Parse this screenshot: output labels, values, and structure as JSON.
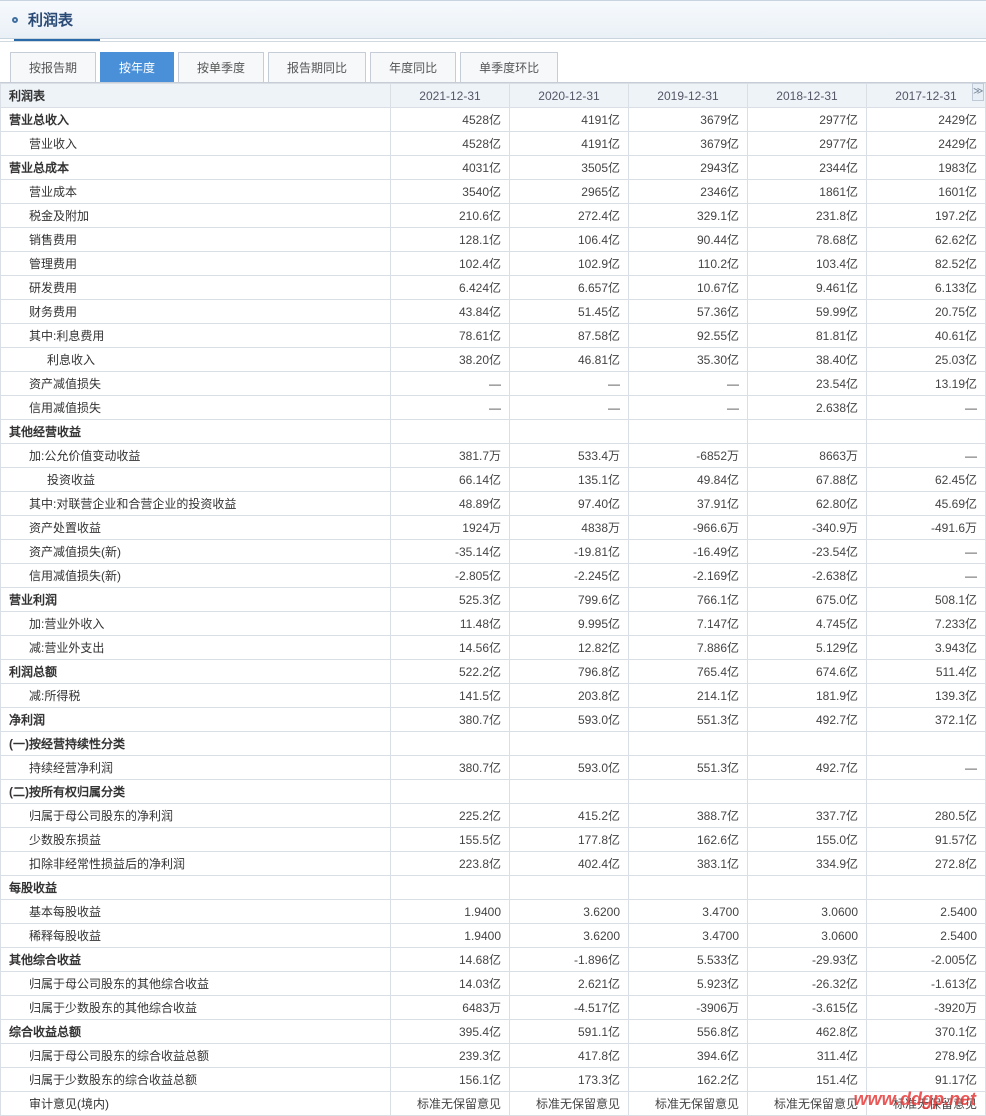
{
  "header": {
    "title": "利润表"
  },
  "tabs": [
    {
      "label": "按报告期",
      "active": false
    },
    {
      "label": "按年度",
      "active": true
    },
    {
      "label": "按单季度",
      "active": false
    },
    {
      "label": "报告期同比",
      "active": false
    },
    {
      "label": "年度同比",
      "active": false
    },
    {
      "label": "单季度环比",
      "active": false
    }
  ],
  "columns": [
    "2021-12-31",
    "2020-12-31",
    "2019-12-31",
    "2018-12-31",
    "2017-12-31"
  ],
  "row_header_label": "利润表",
  "rows": [
    {
      "label": "营业总收入",
      "bold": true,
      "indent": 0,
      "vals": [
        "4528亿",
        "4191亿",
        "3679亿",
        "2977亿",
        "2429亿"
      ]
    },
    {
      "label": "营业收入",
      "indent": 1,
      "vals": [
        "4528亿",
        "4191亿",
        "3679亿",
        "2977亿",
        "2429亿"
      ]
    },
    {
      "label": "营业总成本",
      "bold": true,
      "indent": 0,
      "vals": [
        "4031亿",
        "3505亿",
        "2943亿",
        "2344亿",
        "1983亿"
      ]
    },
    {
      "label": "营业成本",
      "indent": 1,
      "vals": [
        "3540亿",
        "2965亿",
        "2346亿",
        "1861亿",
        "1601亿"
      ]
    },
    {
      "label": "税金及附加",
      "indent": 1,
      "vals": [
        "210.6亿",
        "272.4亿",
        "329.1亿",
        "231.8亿",
        "197.2亿"
      ]
    },
    {
      "label": "销售费用",
      "indent": 1,
      "vals": [
        "128.1亿",
        "106.4亿",
        "90.44亿",
        "78.68亿",
        "62.62亿"
      ]
    },
    {
      "label": "管理费用",
      "indent": 1,
      "vals": [
        "102.4亿",
        "102.9亿",
        "110.2亿",
        "103.4亿",
        "82.52亿"
      ]
    },
    {
      "label": "研发费用",
      "indent": 1,
      "vals": [
        "6.424亿",
        "6.657亿",
        "10.67亿",
        "9.461亿",
        "6.133亿"
      ]
    },
    {
      "label": "财务费用",
      "indent": 1,
      "vals": [
        "43.84亿",
        "51.45亿",
        "57.36亿",
        "59.99亿",
        "20.75亿"
      ]
    },
    {
      "label": "其中:利息费用",
      "indent": 1,
      "vals": [
        "78.61亿",
        "87.58亿",
        "92.55亿",
        "81.81亿",
        "40.61亿"
      ]
    },
    {
      "label": "利息收入",
      "indent": 2,
      "vals": [
        "38.20亿",
        "46.81亿",
        "35.30亿",
        "38.40亿",
        "25.03亿"
      ]
    },
    {
      "label": "资产减值损失",
      "indent": 1,
      "vals": [
        "—",
        "—",
        "—",
        "23.54亿",
        "13.19亿"
      ]
    },
    {
      "label": "信用减值损失",
      "indent": 1,
      "vals": [
        "—",
        "—",
        "—",
        "2.638亿",
        "—"
      ]
    },
    {
      "label": "其他经营收益",
      "bold": true,
      "indent": 0,
      "vals": [
        "",
        "",
        "",
        "",
        ""
      ]
    },
    {
      "label": "加:公允价值变动收益",
      "indent": 1,
      "vals": [
        "381.7万",
        "533.4万",
        "-6852万",
        "8663万",
        "—"
      ]
    },
    {
      "label": "投资收益",
      "indent": 2,
      "vals": [
        "66.14亿",
        "135.1亿",
        "49.84亿",
        "67.88亿",
        "62.45亿"
      ]
    },
    {
      "label": "其中:对联营企业和合营企业的投资收益",
      "indent": 1,
      "vals": [
        "48.89亿",
        "97.40亿",
        "37.91亿",
        "62.80亿",
        "45.69亿"
      ]
    },
    {
      "label": "资产处置收益",
      "indent": 1,
      "vals": [
        "1924万",
        "4838万",
        "-966.6万",
        "-340.9万",
        "-491.6万"
      ]
    },
    {
      "label": "资产减值损失(新)",
      "indent": 1,
      "vals": [
        "-35.14亿",
        "-19.81亿",
        "-16.49亿",
        "-23.54亿",
        "—"
      ]
    },
    {
      "label": "信用减值损失(新)",
      "indent": 1,
      "vals": [
        "-2.805亿",
        "-2.245亿",
        "-2.169亿",
        "-2.638亿",
        "—"
      ]
    },
    {
      "label": "营业利润",
      "bold": true,
      "indent": 0,
      "vals": [
        "525.3亿",
        "799.6亿",
        "766.1亿",
        "675.0亿",
        "508.1亿"
      ]
    },
    {
      "label": "加:营业外收入",
      "indent": 1,
      "vals": [
        "11.48亿",
        "9.995亿",
        "7.147亿",
        "4.745亿",
        "7.233亿"
      ]
    },
    {
      "label": "减:营业外支出",
      "indent": 1,
      "vals": [
        "14.56亿",
        "12.82亿",
        "7.886亿",
        "5.129亿",
        "3.943亿"
      ]
    },
    {
      "label": "利润总额",
      "bold": true,
      "indent": 0,
      "vals": [
        "522.2亿",
        "796.8亿",
        "765.4亿",
        "674.6亿",
        "511.4亿"
      ]
    },
    {
      "label": "减:所得税",
      "indent": 1,
      "vals": [
        "141.5亿",
        "203.8亿",
        "214.1亿",
        "181.9亿",
        "139.3亿"
      ]
    },
    {
      "label": "净利润",
      "bold": true,
      "indent": 0,
      "vals": [
        "380.7亿",
        "593.0亿",
        "551.3亿",
        "492.7亿",
        "372.1亿"
      ]
    },
    {
      "label": "(一)按经营持续性分类",
      "bold": true,
      "indent": 0,
      "vals": [
        "",
        "",
        "",
        "",
        ""
      ]
    },
    {
      "label": "持续经营净利润",
      "indent": 1,
      "vals": [
        "380.7亿",
        "593.0亿",
        "551.3亿",
        "492.7亿",
        "—"
      ]
    },
    {
      "label": "(二)按所有权归属分类",
      "bold": true,
      "indent": 0,
      "vals": [
        "",
        "",
        "",
        "",
        ""
      ]
    },
    {
      "label": "归属于母公司股东的净利润",
      "indent": 1,
      "vals": [
        "225.2亿",
        "415.2亿",
        "388.7亿",
        "337.7亿",
        "280.5亿"
      ]
    },
    {
      "label": "少数股东损益",
      "indent": 1,
      "vals": [
        "155.5亿",
        "177.8亿",
        "162.6亿",
        "155.0亿",
        "91.57亿"
      ]
    },
    {
      "label": "扣除非经常性损益后的净利润",
      "indent": 1,
      "vals": [
        "223.8亿",
        "402.4亿",
        "383.1亿",
        "334.9亿",
        "272.8亿"
      ]
    },
    {
      "label": "每股收益",
      "bold": true,
      "indent": 0,
      "vals": [
        "",
        "",
        "",
        "",
        ""
      ]
    },
    {
      "label": "基本每股收益",
      "indent": 1,
      "vals": [
        "1.9400",
        "3.6200",
        "3.4700",
        "3.0600",
        "2.5400"
      ]
    },
    {
      "label": "稀释每股收益",
      "indent": 1,
      "vals": [
        "1.9400",
        "3.6200",
        "3.4700",
        "3.0600",
        "2.5400"
      ]
    },
    {
      "label": "其他综合收益",
      "bold": true,
      "indent": 0,
      "vals": [
        "14.68亿",
        "-1.896亿",
        "5.533亿",
        "-29.93亿",
        "-2.005亿"
      ]
    },
    {
      "label": "归属于母公司股东的其他综合收益",
      "indent": 1,
      "vals": [
        "14.03亿",
        "2.621亿",
        "5.923亿",
        "-26.32亿",
        "-1.613亿"
      ]
    },
    {
      "label": "归属于少数股东的其他综合收益",
      "indent": 1,
      "vals": [
        "6483万",
        "-4.517亿",
        "-3906万",
        "-3.615亿",
        "-3920万"
      ]
    },
    {
      "label": "综合收益总额",
      "bold": true,
      "indent": 0,
      "vals": [
        "395.4亿",
        "591.1亿",
        "556.8亿",
        "462.8亿",
        "370.1亿"
      ]
    },
    {
      "label": "归属于母公司股东的综合收益总额",
      "indent": 1,
      "vals": [
        "239.3亿",
        "417.8亿",
        "394.6亿",
        "311.4亿",
        "278.9亿"
      ]
    },
    {
      "label": "归属于少数股东的综合收益总额",
      "indent": 1,
      "vals": [
        "156.1亿",
        "173.3亿",
        "162.2亿",
        "151.4亿",
        "91.17亿"
      ]
    },
    {
      "label": "审计意见(境内)",
      "indent": 1,
      "vals": [
        "标准无保留意见",
        "标准无保留意见",
        "标准无保留意见",
        "标准无保留意见",
        "标准无保留意见"
      ]
    }
  ],
  "watermark": "www.ddgp.net"
}
